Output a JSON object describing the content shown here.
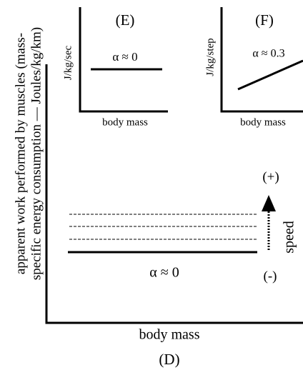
{
  "panel_d": {
    "label": "(D)",
    "y_axis_label_line1": "apparent work performed by muscles (mass-",
    "y_axis_label_line2": "specific energy consumption — Joules/kg/km)",
    "x_axis_label": "body mass",
    "alpha_label": "α ≈ 0",
    "speed_plus": "(+)",
    "speed_minus": "(-)",
    "speed_label": "speed"
  },
  "panel_e": {
    "label": "(E)",
    "y_axis_label": "J/kg/sec",
    "x_axis_label": "body mass",
    "alpha_label": "α ≈ 0"
  },
  "panel_f": {
    "label": "(F)",
    "y_axis_label": "J/kg/step",
    "x_axis_label": "body mass",
    "alpha_label": "α ≈ 0.3"
  }
}
